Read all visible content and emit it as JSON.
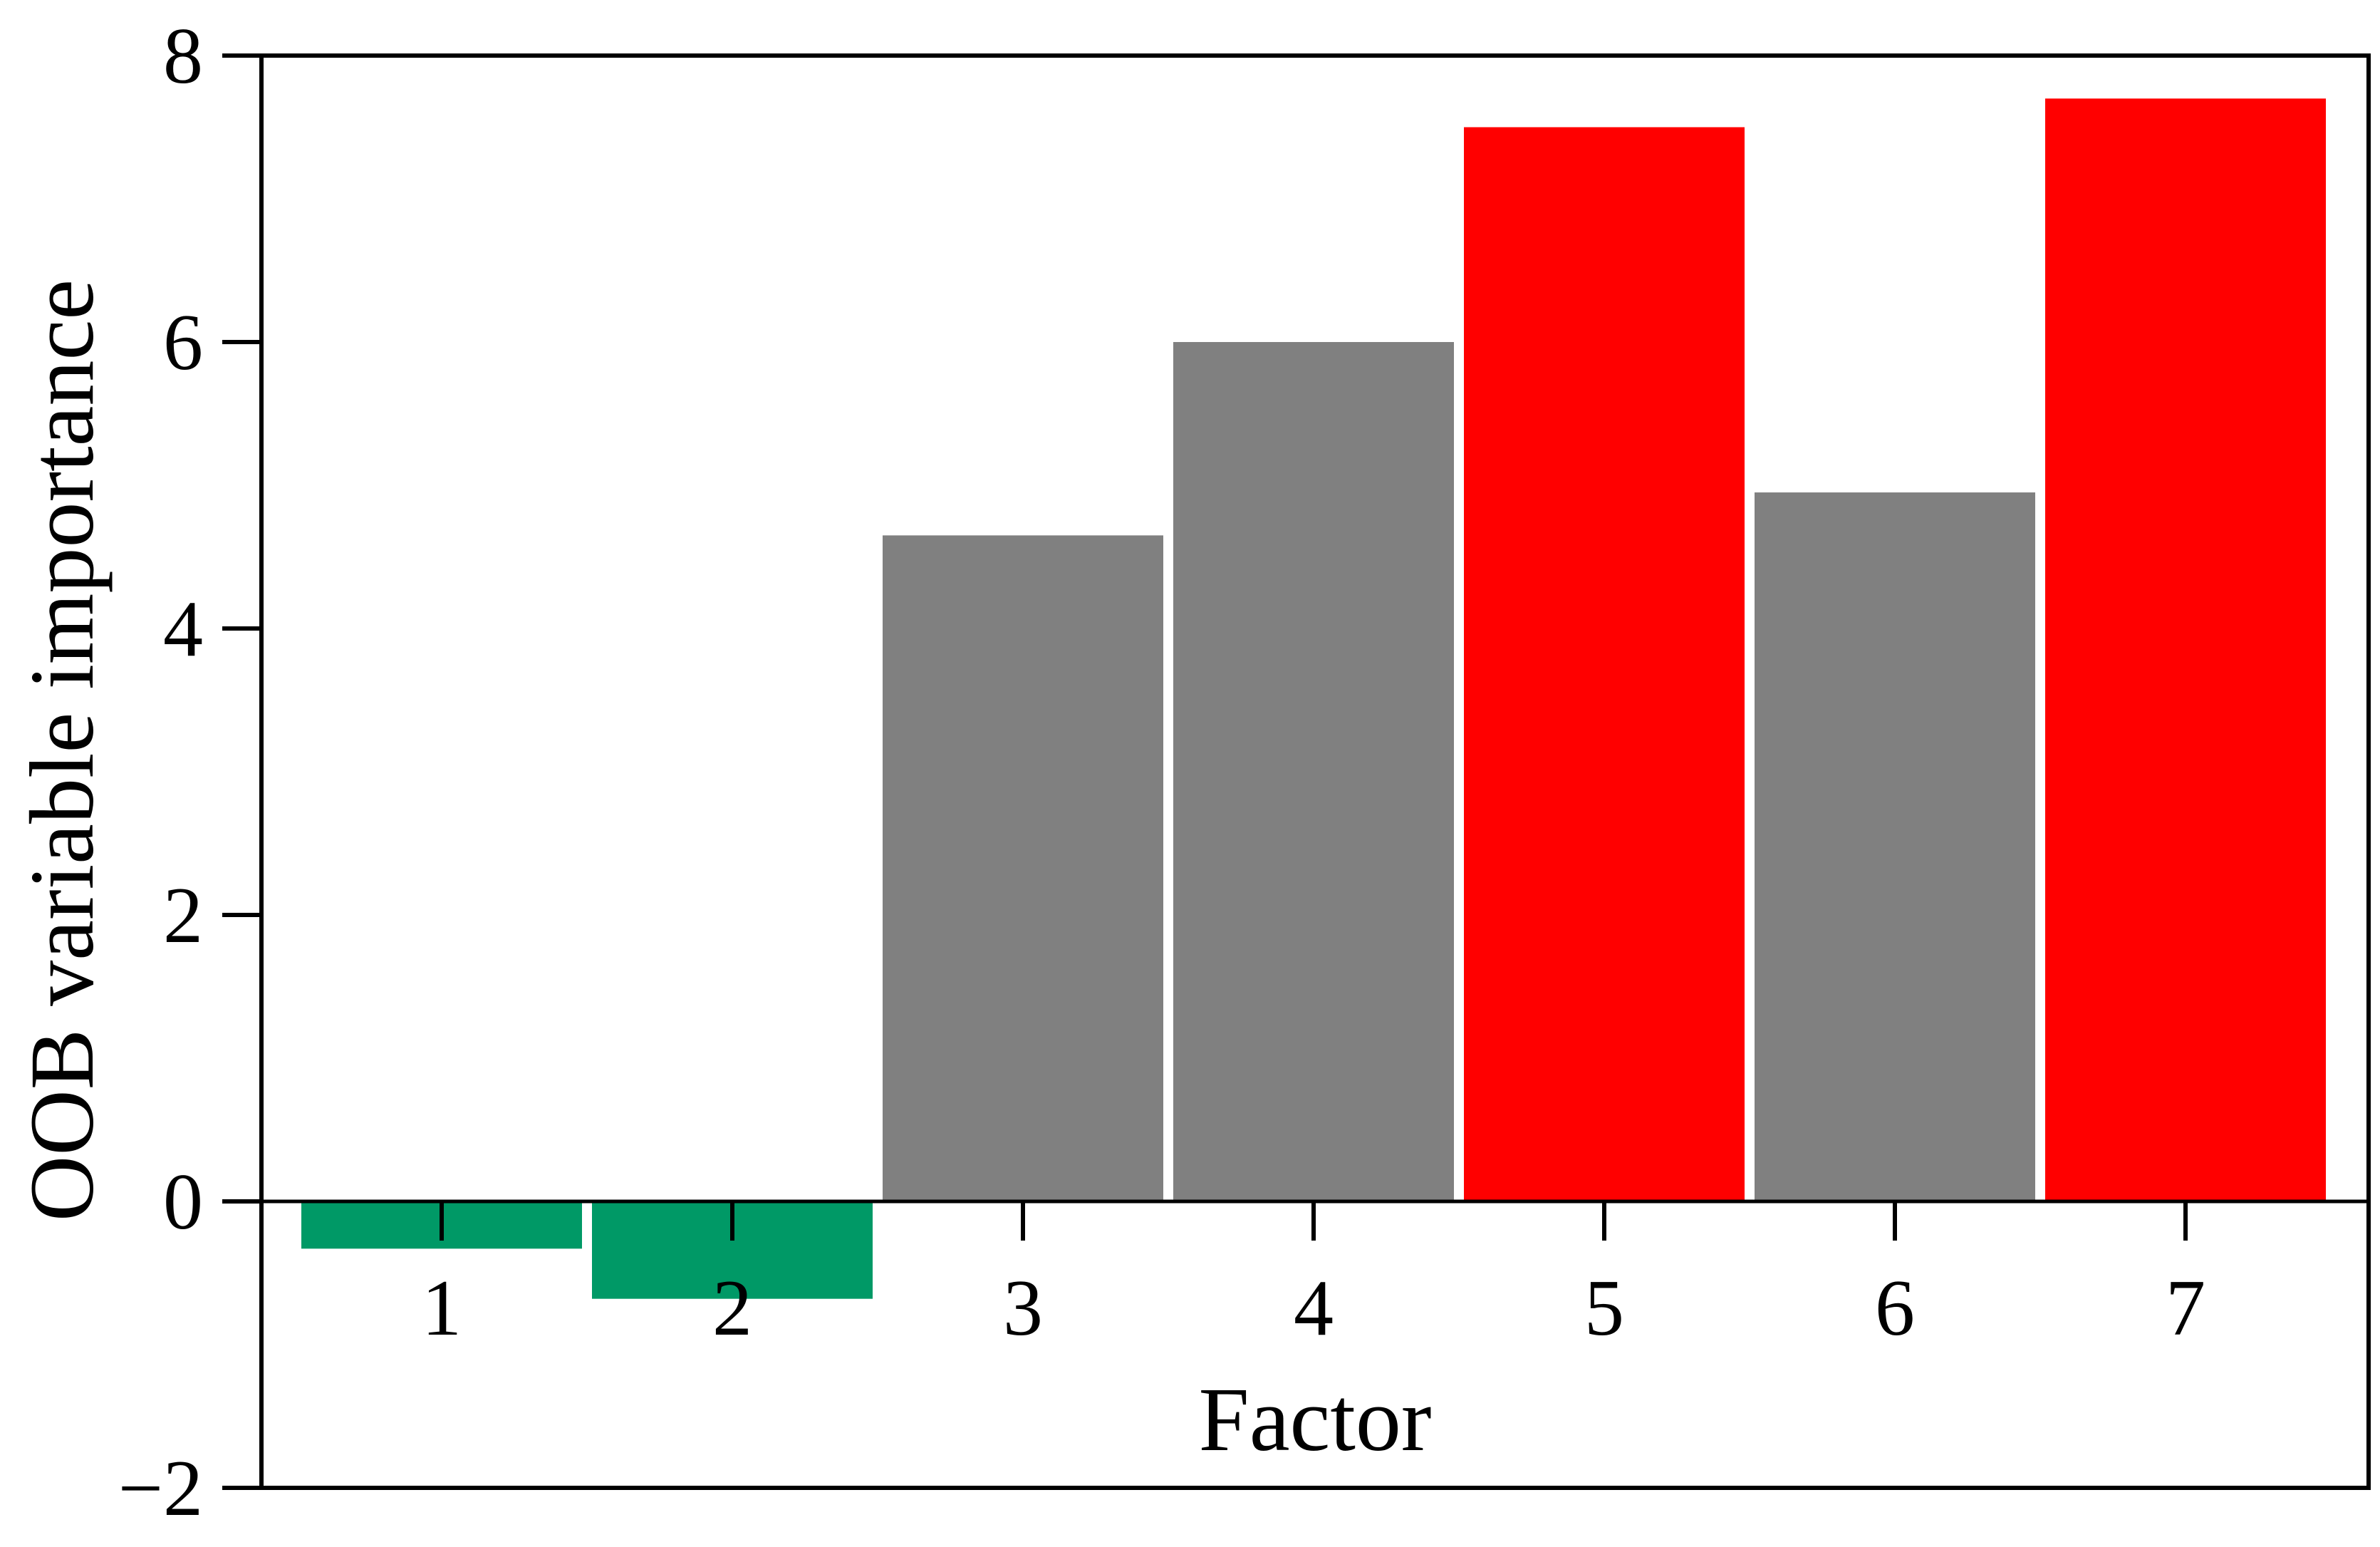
{
  "chart_data": {
    "type": "bar",
    "categories": [
      "1",
      "2",
      "3",
      "4",
      "5",
      "6",
      "7"
    ],
    "values": [
      -0.33,
      -0.68,
      4.65,
      6.0,
      7.5,
      4.95,
      7.7
    ],
    "bar_colors": [
      "#009966",
      "#009966",
      "#808080",
      "#808080",
      "#ff0000",
      "#808080",
      "#ff0000"
    ],
    "xlabel": "Factor",
    "ylabel": "OOB variable importance",
    "ylim": [
      -2,
      8
    ],
    "yticks": [
      -2,
      0,
      2,
      4,
      6,
      8
    ],
    "ytick_labels": [
      "−2",
      "0",
      "2",
      "4",
      "6",
      "8"
    ],
    "grid": false
  }
}
